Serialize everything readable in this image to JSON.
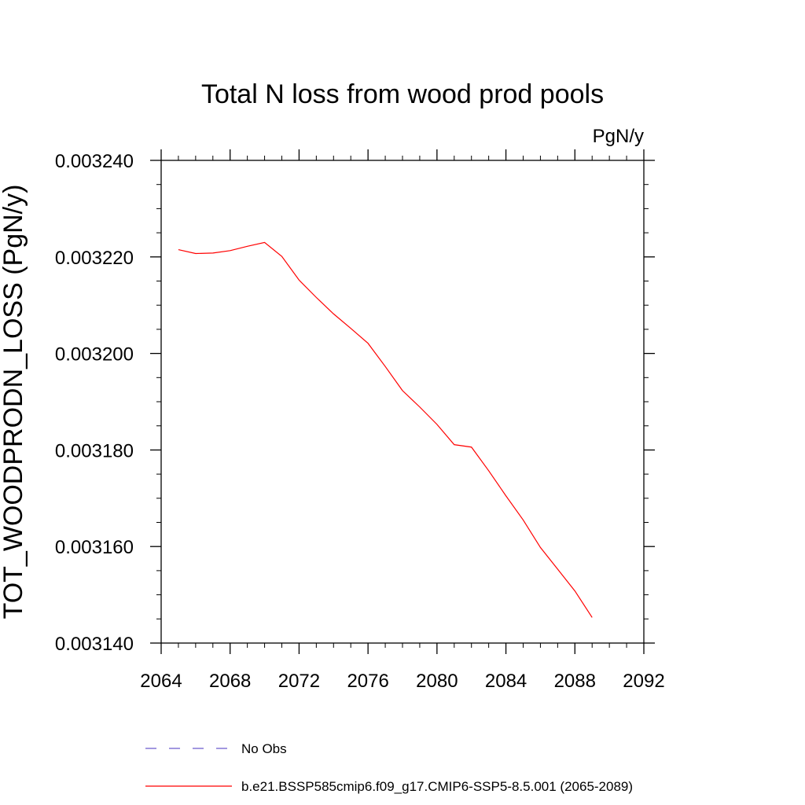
{
  "chart_data": {
    "type": "line",
    "title": "Total N loss from wood prod pools",
    "units_label": "PgN/y",
    "ylabel": "TOT_WOODPRODN_LOSS  (PgN/y)",
    "xlabel": "",
    "xlim": [
      2064,
      2092
    ],
    "ylim": [
      0.00314,
      0.00324
    ],
    "x_ticks": [
      2064,
      2068,
      2072,
      2076,
      2080,
      2084,
      2088,
      2092
    ],
    "x_tick_labels": [
      "2064",
      "2068",
      "2072",
      "2076",
      "2080",
      "2084",
      "2088",
      "2092"
    ],
    "y_ticks": [
      0.00314,
      0.00316,
      0.00318,
      0.0032,
      0.00322,
      0.00324
    ],
    "y_tick_labels": [
      "0.003140",
      "0.003160",
      "0.003180",
      "0.003200",
      "0.003220",
      "0.003240"
    ],
    "grid": false,
    "legend_position": "bottom",
    "series": [
      {
        "name": "b.e21.BSSP585cmip6.f09_g17.CMIP6-SSP5-8.5.001 (2065-2089)",
        "color": "#ff0000",
        "dash": "solid",
        "x": [
          2065,
          2066,
          2067,
          2068,
          2069,
          2070,
          2071,
          2072,
          2073,
          2074,
          2075,
          2076,
          2077,
          2078,
          2079,
          2080,
          2081,
          2082,
          2083,
          2084,
          2085,
          2086,
          2087,
          2088,
          2089
        ],
        "y": [
          0.0032215,
          0.0032207,
          0.0032208,
          0.0032213,
          0.0032222,
          0.003223,
          0.0032201,
          0.0032152,
          0.0032116,
          0.0032082,
          0.0032052,
          0.0032021,
          0.0031973,
          0.0031923,
          0.0031889,
          0.0031853,
          0.0031811,
          0.0031806,
          0.0031757,
          0.0031705,
          0.0031655,
          0.0031598,
          0.0031553,
          0.0031508,
          0.0031453
        ]
      }
    ],
    "legend": [
      {
        "label": "No Obs",
        "color": "#6a5acd",
        "dash": "dashed"
      },
      {
        "label": "b.e21.BSSP585cmip6.f09_g17.CMIP6-SSP5-8.5.001 (2065-2089)",
        "color": "#ff0000",
        "dash": "solid"
      }
    ]
  }
}
